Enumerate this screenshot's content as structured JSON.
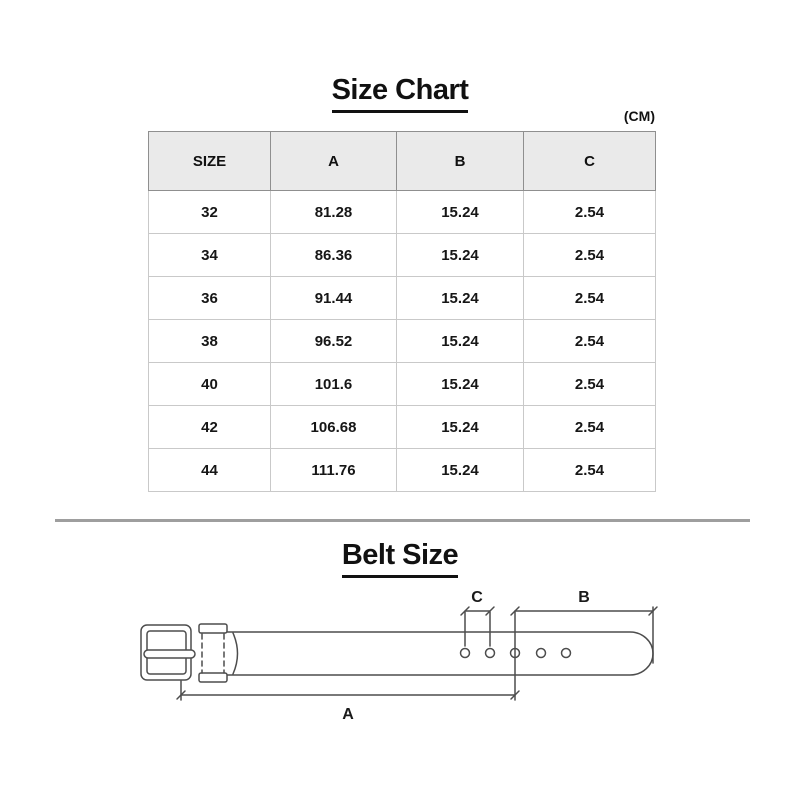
{
  "size_chart": {
    "title": "Size Chart",
    "unit_label": "(CM)",
    "table": {
      "headers": [
        "SIZE",
        "A",
        "B",
        "C"
      ],
      "rows": [
        [
          "32",
          "81.28",
          "15.24",
          "2.54"
        ],
        [
          "34",
          "86.36",
          "15.24",
          "2.54"
        ],
        [
          "36",
          "91.44",
          "15.24",
          "2.54"
        ],
        [
          "38",
          "96.52",
          "15.24",
          "2.54"
        ],
        [
          "40",
          "101.6",
          "15.24",
          "2.54"
        ],
        [
          "42",
          "106.68",
          "15.24",
          "2.54"
        ],
        [
          "44",
          "111.76",
          "15.24",
          "2.54"
        ]
      ]
    }
  },
  "belt_size": {
    "title": "Belt Size",
    "dimension_labels": {
      "a": "A",
      "b": "B",
      "c": "C"
    }
  },
  "colors": {
    "table_header_bg": "#eaeaea",
    "table_header_border": "#8f8f8f",
    "table_body_border": "#c9c9c9",
    "divider": "#9e9e9e",
    "diagram_line": "#4d4d4d",
    "text": "#111111"
  }
}
